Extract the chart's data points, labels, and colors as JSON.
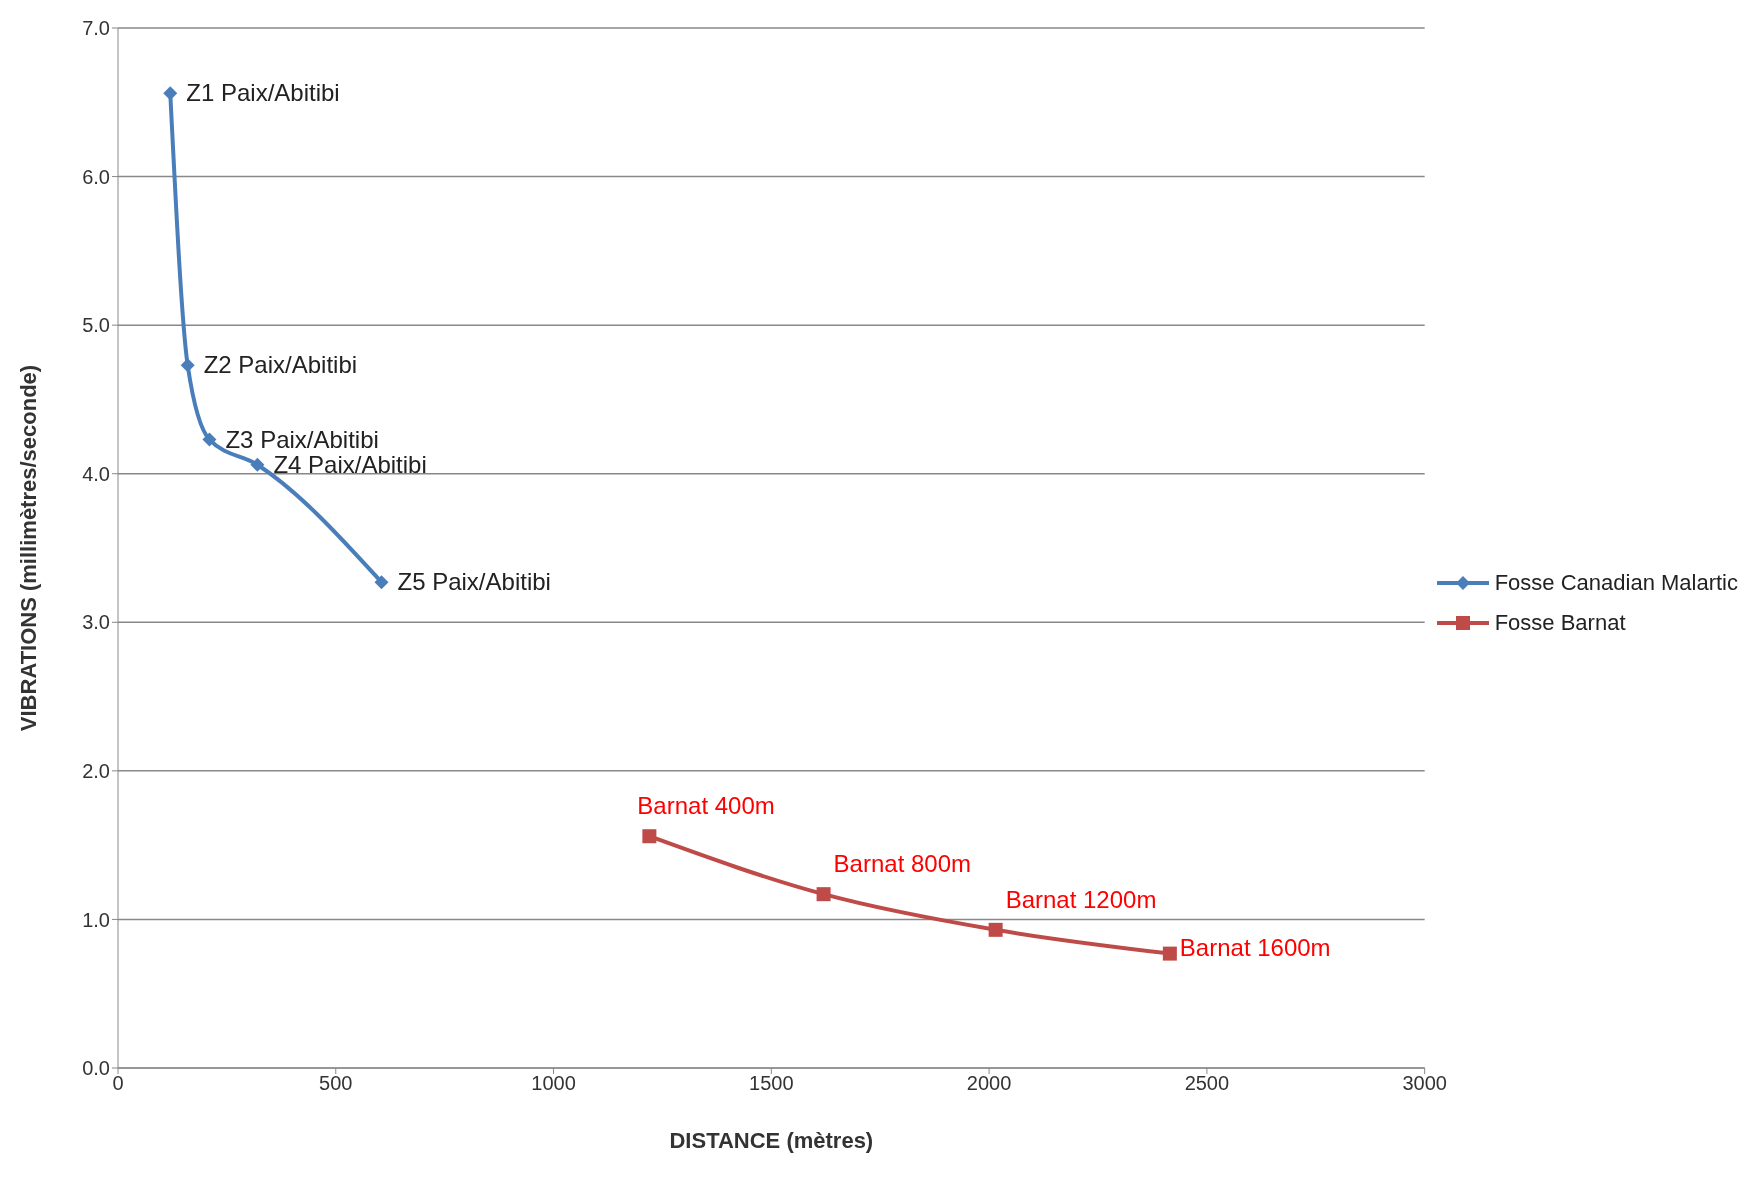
{
  "chart_data": {
    "type": "line",
    "xlabel": "DISTANCE (mètres)",
    "ylabel": "VIBRATIONS (millimètres/seconde)",
    "xlim": [
      0,
      3000
    ],
    "xticks": [
      0,
      500,
      1000,
      1500,
      2000,
      2500,
      3000
    ],
    "ylim": [
      0,
      7
    ],
    "yticks": [
      {
        "value": 0,
        "label": "0.0"
      },
      {
        "value": 1,
        "label": "1.0"
      },
      {
        "value": 2,
        "label": "2.0"
      },
      {
        "value": 3,
        "label": "3.0"
      },
      {
        "value": 4,
        "label": "4.0"
      },
      {
        "value": 5,
        "label": "5.0"
      },
      {
        "value": 6,
        "label": "6.0"
      },
      {
        "value": 7,
        "label": "7.0"
      }
    ],
    "grid": "y",
    "legend": "right",
    "line_style": "solid",
    "series": [
      {
        "name": "Fosse Canadian Malartic",
        "color": "#4a7ebb",
        "marker": "diamond",
        "x": [
          120,
          160,
          210,
          320,
          605
        ],
        "values": [
          6.56,
          4.73,
          4.23,
          4.06,
          3.27
        ],
        "value_labels": [
          "Z1 Paix/Abitibi",
          "Z2 Paix/Abitibi",
          "Z3 Paix/Abitibi",
          "Z4 Paix/Abitibi",
          "Z5 Paix/Abitibi"
        ]
      },
      {
        "name": "Fosse Barnat",
        "color": "#be4b48",
        "marker": "square",
        "x": [
          1220,
          1620,
          2015,
          2415
        ],
        "values": [
          1.56,
          1.17,
          0.93,
          0.77
        ],
        "value_labels": [
          "Barnat 400m",
          "Barnat 800m",
          "Barnat 1200m",
          "Barnat 1600m"
        ]
      }
    ]
  }
}
